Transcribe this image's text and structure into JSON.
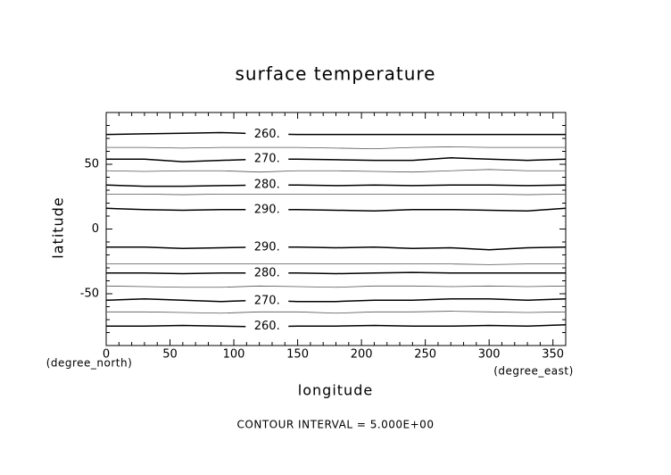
{
  "chart_data": {
    "type": "contour",
    "title": "surface temperature",
    "xlabel": "longitude",
    "ylabel": "latitude",
    "xunit": "(degree_east)",
    "yunit": "(degree_north)",
    "footer": "CONTOUR INTERVAL = 5.000E+00",
    "xlim": [
      0,
      360
    ],
    "ylim": [
      -90,
      90
    ],
    "xticks": [
      0,
      50,
      100,
      150,
      200,
      250,
      300,
      350
    ],
    "yticks": [
      -50,
      0,
      50
    ],
    "xminorticks": [
      10,
      20,
      30,
      40,
      60,
      70,
      80,
      90,
      110,
      120,
      130,
      140,
      160,
      170,
      180,
      190,
      210,
      220,
      230,
      240,
      260,
      270,
      280,
      290,
      310,
      320,
      330,
      340
    ],
    "yminorticks": [
      -80,
      -70,
      -60,
      -40,
      -30,
      -20,
      -10,
      10,
      20,
      30,
      40,
      60,
      70,
      80
    ],
    "x": [
      0,
      30,
      60,
      90,
      120,
      150,
      180,
      210,
      240,
      270,
      300,
      330,
      360
    ],
    "contours": [
      {
        "level": 260,
        "label": "260.",
        "values": [
          73,
          73.5,
          74,
          74.5,
          73.5,
          73,
          73,
          73,
          73,
          73,
          73,
          73,
          73
        ]
      },
      {
        "level": 265,
        "values": [
          63,
          63,
          62.5,
          63,
          63,
          63,
          62.5,
          62,
          63,
          63.5,
          63,
          63,
          63
        ]
      },
      {
        "level": 270,
        "label": "270.",
        "values": [
          54,
          54,
          52,
          53,
          54,
          54,
          53.5,
          53,
          53,
          55,
          54,
          53,
          54
        ]
      },
      {
        "level": 275,
        "values": [
          45,
          44.5,
          45,
          45,
          44,
          45,
          45,
          44.5,
          44,
          45,
          46,
          45,
          45
        ]
      },
      {
        "level": 280,
        "label": "280.",
        "values": [
          34,
          33,
          33,
          33.5,
          34,
          34,
          33.5,
          34,
          33.5,
          34,
          34,
          33.5,
          34
        ]
      },
      {
        "level": 285,
        "values": [
          27,
          27,
          26.5,
          27,
          27,
          27,
          27,
          27,
          27,
          27,
          27,
          26.5,
          27
        ]
      },
      {
        "level": 290,
        "label": "290.",
        "values": [
          16,
          15,
          14.5,
          15,
          15,
          15,
          14.5,
          14,
          15,
          15,
          14.5,
          14,
          16
        ]
      },
      {
        "level": 290,
        "label": "290.",
        "values": [
          -14,
          -14,
          -15,
          -14.5,
          -14,
          -14,
          -14.5,
          -14,
          -15,
          -14.5,
          -16,
          -14.5,
          -14
        ]
      },
      {
        "level": 285,
        "values": [
          -27,
          -27,
          -27,
          -27,
          -27,
          -27,
          -27,
          -27,
          -27,
          -27,
          -27.5,
          -27,
          -27
        ]
      },
      {
        "level": 280,
        "label": "280.",
        "values": [
          -34,
          -34,
          -34.5,
          -34,
          -34,
          -34,
          -34.5,
          -34,
          -33.5,
          -34,
          -34,
          -34,
          -34
        ]
      },
      {
        "level": 275,
        "values": [
          -44,
          -44.5,
          -45,
          -45,
          -44,
          -44.5,
          -45,
          -44,
          -44,
          -44.5,
          -44,
          -44.5,
          -44
        ]
      },
      {
        "level": 270,
        "label": "270.",
        "values": [
          -55,
          -54,
          -55,
          -56,
          -55,
          -56,
          -56,
          -55,
          -55,
          -54,
          -54,
          -55,
          -54
        ]
      },
      {
        "level": 265,
        "values": [
          -64,
          -64,
          -64.5,
          -65,
          -64,
          -64,
          -65,
          -64,
          -64,
          -63.5,
          -64,
          -64.5,
          -64
        ]
      },
      {
        "level": 260,
        "label": "260.",
        "values": [
          -75,
          -75,
          -74.5,
          -75,
          -75.5,
          -75,
          -75,
          -74.5,
          -75,
          -75,
          -74.5,
          -75,
          -74
        ]
      }
    ]
  }
}
